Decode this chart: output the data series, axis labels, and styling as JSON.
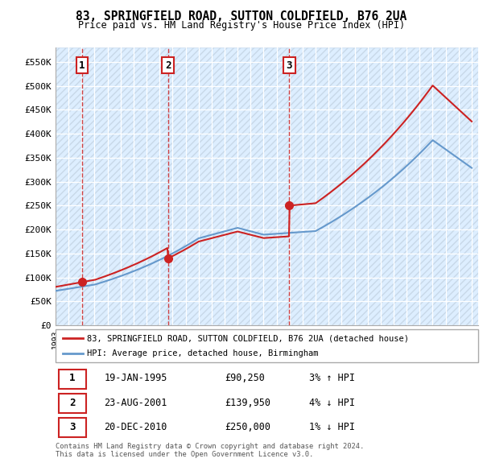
{
  "title": "83, SPRINGFIELD ROAD, SUTTON COLDFIELD, B76 2UA",
  "subtitle": "Price paid vs. HM Land Registry's House Price Index (HPI)",
  "ylim": [
    0,
    580000
  ],
  "yticks": [
    0,
    50000,
    100000,
    150000,
    200000,
    250000,
    300000,
    350000,
    400000,
    450000,
    500000,
    550000
  ],
  "ytick_labels": [
    "£0",
    "£50K",
    "£100K",
    "£150K",
    "£200K",
    "£250K",
    "£300K",
    "£350K",
    "£400K",
    "£450K",
    "£500K",
    "£550K"
  ],
  "hpi_color": "#6699cc",
  "price_color": "#cc2222",
  "bg_color": "#ddeeff",
  "sale1": {
    "date_idx": 1995.05,
    "price": 90250,
    "label": "1"
  },
  "sale2": {
    "date_idx": 2001.65,
    "price": 139950,
    "label": "2"
  },
  "sale3": {
    "date_idx": 2010.97,
    "price": 250000,
    "label": "3"
  },
  "legend_sale_label": "83, SPRINGFIELD ROAD, SUTTON COLDFIELD, B76 2UA (detached house)",
  "legend_hpi_label": "HPI: Average price, detached house, Birmingham",
  "table_rows": [
    {
      "num": "1",
      "date": "19-JAN-1995",
      "price": "£90,250",
      "hpi": "3% ↑ HPI"
    },
    {
      "num": "2",
      "date": "23-AUG-2001",
      "price": "£139,950",
      "hpi": "4% ↓ HPI"
    },
    {
      "num": "3",
      "date": "20-DEC-2010",
      "price": "£250,000",
      "hpi": "1% ↓ HPI"
    }
  ],
  "footer": "Contains HM Land Registry data © Crown copyright and database right 2024.\nThis data is licensed under the Open Government Licence v3.0."
}
